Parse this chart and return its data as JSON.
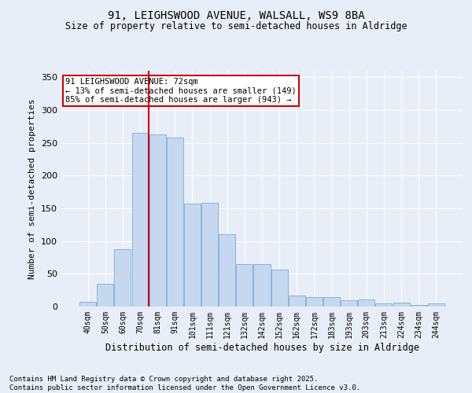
{
  "title": "91, LEIGHSWOOD AVENUE, WALSALL, WS9 8BA",
  "subtitle": "Size of property relative to semi-detached houses in Aldridge",
  "xlabel": "Distribution of semi-detached houses by size in Aldridge",
  "ylabel": "Number of semi-detached properties",
  "footnote": "Contains HM Land Registry data © Crown copyright and database right 2025.\nContains public sector information licensed under the Open Government Licence v3.0.",
  "bar_color": "#c5d8f0",
  "bar_edge_color": "#7baed4",
  "annotation_box_color": "#cc0000",
  "vline_color": "#cc0000",
  "background_color": "#e8eef8",
  "grid_color": "#ffffff",
  "categories": [
    "40sqm",
    "50sqm",
    "60sqm",
    "70sqm",
    "81sqm",
    "91sqm",
    "101sqm",
    "111sqm",
    "121sqm",
    "132sqm",
    "142sqm",
    "152sqm",
    "162sqm",
    "172sqm",
    "183sqm",
    "193sqm",
    "203sqm",
    "213sqm",
    "224sqm",
    "234sqm",
    "244sqm"
  ],
  "values": [
    7,
    35,
    88,
    265,
    263,
    258,
    157,
    158,
    111,
    65,
    65,
    56,
    17,
    15,
    14,
    10,
    11,
    5,
    6,
    2,
    5
  ],
  "property_label": "91 LEIGHSWOOD AVENUE: 72sqm",
  "pct_smaller": 13,
  "n_smaller": 149,
  "pct_larger": 85,
  "n_larger": 943,
  "vline_x_index": 3.5,
  "ylim": [
    0,
    360
  ],
  "yticks": [
    0,
    50,
    100,
    150,
    200,
    250,
    300,
    350
  ]
}
